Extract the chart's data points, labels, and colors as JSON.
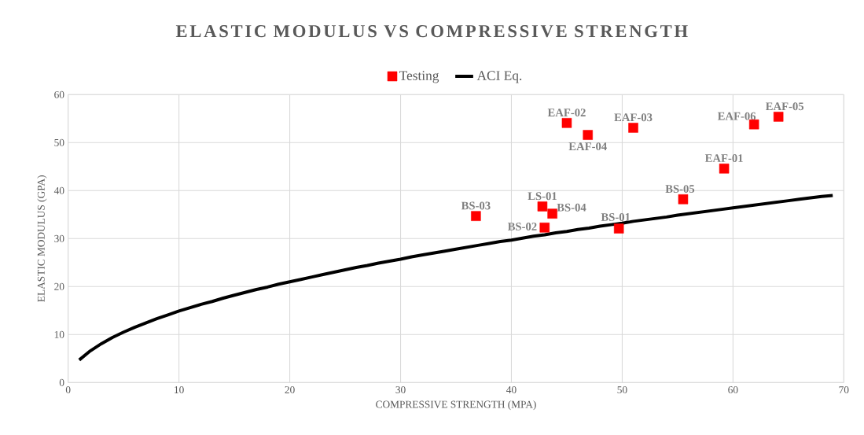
{
  "chart_data": {
    "type": "scatter",
    "title": "ELASTIC MODULUS VS COMPRESSIVE STRENGTH",
    "xlabel": "COMPRESSIVE STRENGTH (MPA)",
    "ylabel": "ELASTIC MODULUS  (GPA)",
    "xlim": [
      0,
      70
    ],
    "xticks": [
      0,
      10,
      20,
      30,
      40,
      50,
      60,
      70
    ],
    "ylim": [
      0,
      60
    ],
    "yticks": [
      0,
      10,
      20,
      30,
      40,
      50,
      60
    ],
    "grid": true,
    "legend": "top",
    "series": [
      {
        "name": "Testing",
        "marker": "square",
        "color": "#ff0000",
        "x": [
          36.8,
          42.8,
          43.7,
          43.0,
          45.0,
          46.9,
          51.0,
          49.7,
          55.5,
          59.2,
          61.9,
          64.1
        ],
        "values": [
          34.7,
          36.7,
          35.2,
          32.3,
          54.1,
          51.6,
          53.1,
          32.1,
          38.2,
          44.6,
          53.8,
          55.4
        ]
      },
      {
        "name": "ACI Eq.",
        "type": "line",
        "marker": "none",
        "color": "#000000",
        "x": [
          1,
          2,
          3,
          4,
          5,
          6,
          7,
          8,
          9,
          10,
          11,
          12,
          13,
          14,
          15,
          16,
          17,
          18,
          19,
          20,
          21,
          22,
          23,
          24,
          25,
          26,
          27,
          28,
          29,
          30,
          31,
          32,
          33,
          34,
          35,
          36,
          37,
          38,
          39,
          40,
          41,
          42,
          43,
          44,
          45,
          46,
          47,
          48,
          49,
          50,
          51,
          52,
          53,
          54,
          55,
          56,
          57,
          58,
          59,
          60,
          61,
          62,
          63,
          64,
          65,
          66,
          67,
          68,
          69
        ],
        "values": [
          4.7,
          6.6,
          8.1,
          9.4,
          10.5,
          11.5,
          12.4,
          13.3,
          14.1,
          14.9,
          15.6,
          16.3,
          16.9,
          17.6,
          18.2,
          18.8,
          19.4,
          19.9,
          20.5,
          21.0,
          21.5,
          22.0,
          22.5,
          23.0,
          23.5,
          24.0,
          24.4,
          24.9,
          25.3,
          25.7,
          26.2,
          26.6,
          27.0,
          27.4,
          27.8,
          28.2,
          28.6,
          29.0,
          29.4,
          29.7,
          30.1,
          30.5,
          30.8,
          31.2,
          31.5,
          31.9,
          32.2,
          32.6,
          32.9,
          33.2,
          33.6,
          33.9,
          34.2,
          34.5,
          34.9,
          35.2,
          35.5,
          35.8,
          36.1,
          36.4,
          36.7,
          37.0,
          37.3,
          37.6,
          37.9,
          38.2,
          38.5,
          38.8,
          39.0
        ]
      }
    ],
    "annotations": [
      {
        "text": "BS-03",
        "x": 36.8,
        "y": 34.7
      },
      {
        "text": "LS-01",
        "x": 42.8,
        "y": 36.7
      },
      {
        "text": "BS-04",
        "x": 43.7,
        "y": 35.2
      },
      {
        "text": "BS-02",
        "x": 43.0,
        "y": 32.3
      },
      {
        "text": "EAF-02",
        "x": 45.0,
        "y": 54.1
      },
      {
        "text": "EAF-04",
        "x": 46.9,
        "y": 51.6
      },
      {
        "text": "EAF-03",
        "x": 51.0,
        "y": 53.1
      },
      {
        "text": "BS-01",
        "x": 49.7,
        "y": 32.1
      },
      {
        "text": "BS-05",
        "x": 55.5,
        "y": 38.2
      },
      {
        "text": "EAF-01",
        "x": 59.2,
        "y": 44.6
      },
      {
        "text": "EAF-06",
        "x": 61.9,
        "y": 53.8
      },
      {
        "text": "EAF-05",
        "x": 64.1,
        "y": 55.4
      }
    ]
  }
}
